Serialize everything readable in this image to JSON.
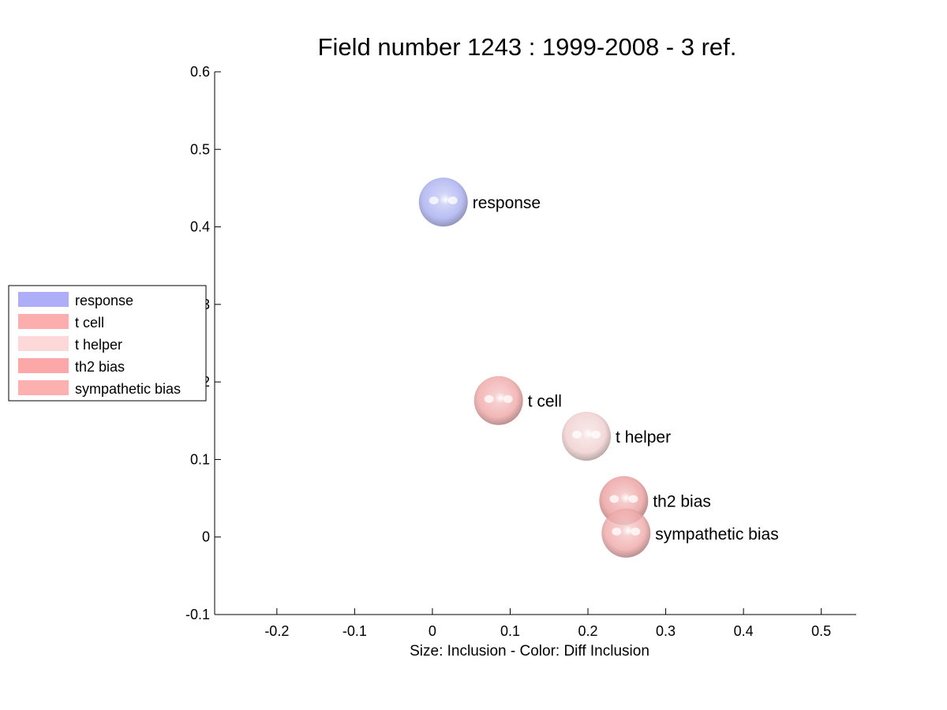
{
  "chart_data": {
    "type": "scatter",
    "title": "Field number 1243 : 1999-2008  - 3 ref.",
    "xlabel": "Size: Inclusion - Color: Diff Inclusion",
    "ylabel": "",
    "xlim": [
      -0.28,
      0.545
    ],
    "ylim": [
      -0.1,
      0.6
    ],
    "x_ticks": [
      -0.2,
      -0.1,
      0,
      0.1,
      0.2,
      0.3,
      0.4,
      0.5
    ],
    "x_tick_labels": [
      "-0.2",
      "-0.1",
      "0",
      "0.1",
      "0.2",
      "0.3",
      "0.4",
      "0.5"
    ],
    "y_ticks": [
      -0.1,
      0,
      0.1,
      0.2,
      0.3,
      0.4,
      0.5,
      0.6
    ],
    "y_tick_labels": [
      "-0.1",
      "0",
      "0.1",
      "0.2",
      "0.3",
      "0.4",
      "0.5",
      "0.6"
    ],
    "grid": false,
    "legend_position": "left",
    "points": [
      {
        "label": "response",
        "x": 0.014,
        "y": 0.432,
        "color": "#aab0f0"
      },
      {
        "label": "t cell",
        "x": 0.085,
        "y": 0.176,
        "color": "#f0a8a8"
      },
      {
        "label": "t helper",
        "x": 0.198,
        "y": 0.13,
        "color": "#f0d0d0"
      },
      {
        "label": "th2 bias",
        "x": 0.246,
        "y": 0.047,
        "color": "#eca0a0"
      },
      {
        "label": "sympathetic bias",
        "x": 0.249,
        "y": 0.005,
        "color": "#f0aaaa"
      }
    ],
    "legend": [
      {
        "label": "response",
        "color": "#adadf8"
      },
      {
        "label": "t cell",
        "color": "#fcadad"
      },
      {
        "label": "t helper",
        "color": "#fdd8d8"
      },
      {
        "label": "th2 bias",
        "color": "#fca8a8"
      },
      {
        "label": "sympathetic bias",
        "color": "#fcb0b0"
      }
    ]
  }
}
